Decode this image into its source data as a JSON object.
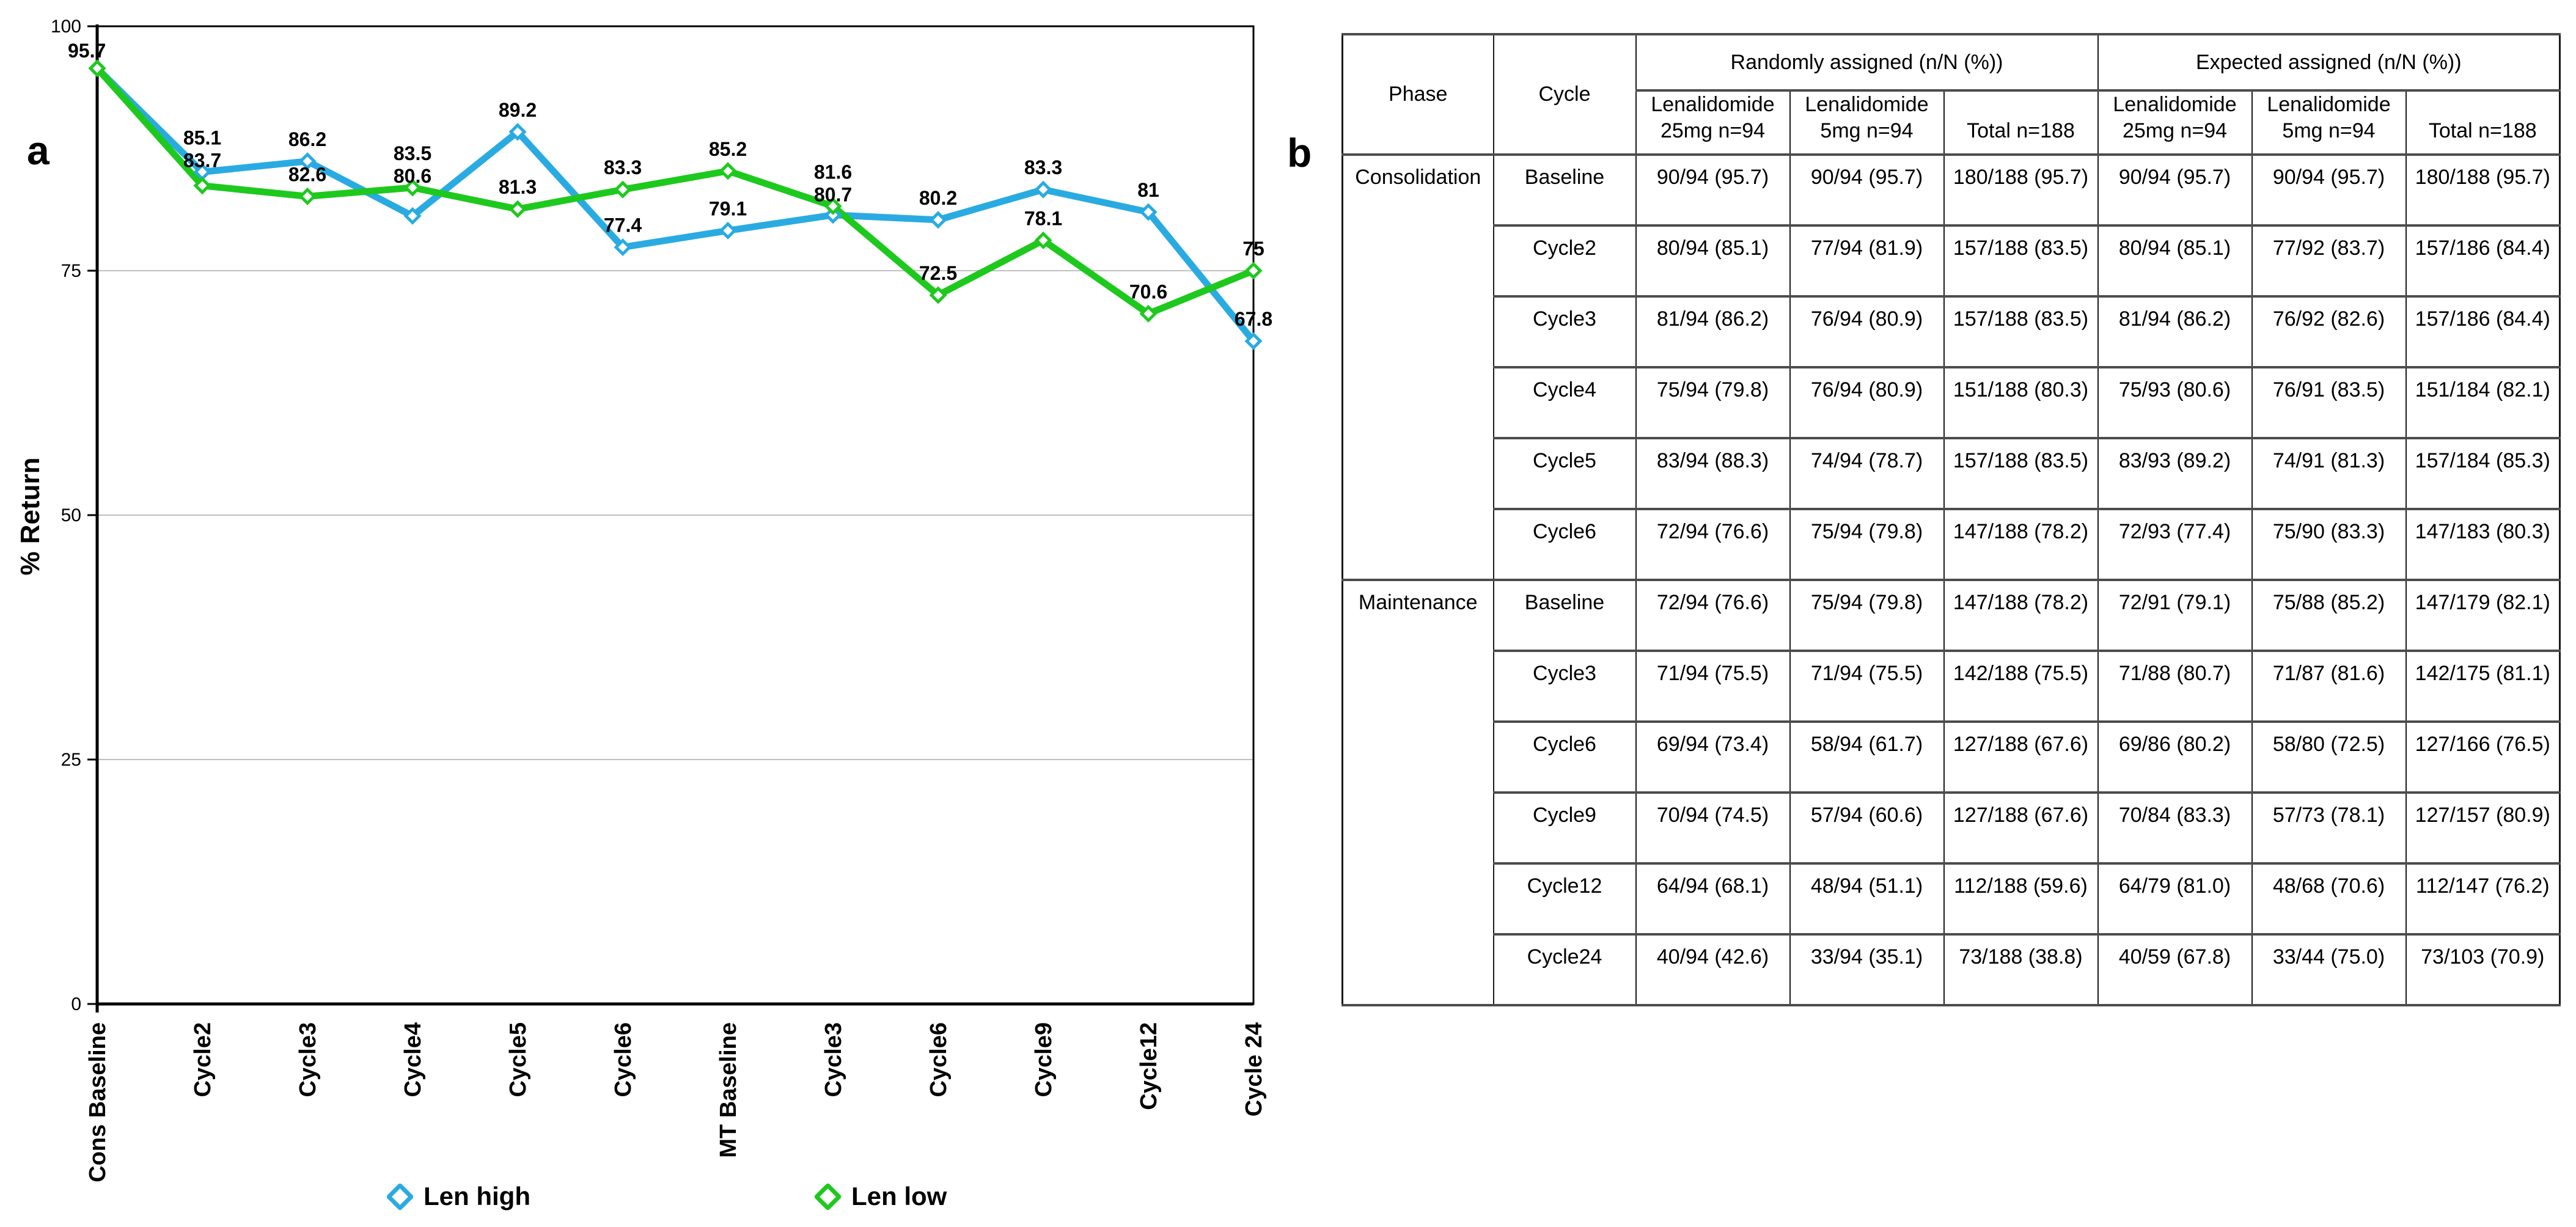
{
  "panel_a": {
    "label": "a",
    "y_axis_title": "% Return",
    "legend": [
      {
        "name": "Len high",
        "color": "#29ABE2"
      },
      {
        "name": "Len low",
        "color": "#1EC91E"
      }
    ]
  },
  "chart_data": {
    "type": "line",
    "title": "",
    "xlabel": "",
    "ylabel": "% Return",
    "ylim": [
      0,
      100
    ],
    "yticks": [
      0,
      25,
      50,
      75,
      100
    ],
    "gridlines": [
      25,
      50,
      75
    ],
    "grid": true,
    "legend_position": "bottom",
    "categories": [
      "Cons Baseline",
      "Cycle2",
      "Cycle3",
      "Cycle4",
      "Cycle5",
      "Cycle6",
      "MT Baseline",
      "Cycle3",
      "Cycle6",
      "Cycle9",
      "Cycle12",
      "Cycle 24"
    ],
    "series": [
      {
        "name": "Len high",
        "color": "#29ABE2",
        "values": [
          95.7,
          85.1,
          86.2,
          80.6,
          89.2,
          77.4,
          79.1,
          80.7,
          80.2,
          83.3,
          81,
          67.8
        ],
        "labels": [
          "95.7",
          "85.1",
          "86.2",
          "80.6",
          "89.2",
          "77.4",
          "79.1",
          "80.7",
          "80.2",
          "83.3",
          "81",
          "67.8"
        ]
      },
      {
        "name": "Len low",
        "color": "#1EC91E",
        "values": [
          95.7,
          83.7,
          82.6,
          83.5,
          81.3,
          83.3,
          85.2,
          81.6,
          72.5,
          78.1,
          70.6,
          75
        ],
        "labels": [
          "95.7",
          "83.7",
          "82.6",
          "83.5",
          "81.3",
          "83.3",
          "85.2",
          "81.6",
          "72.5",
          "78.1",
          "70.6",
          "75"
        ]
      }
    ]
  },
  "panel_b": {
    "label": "b",
    "table": {
      "corner_headers": [
        "Phase",
        "Cycle"
      ],
      "groups": [
        {
          "label": "Randomly assigned (n/N (%))",
          "subcolumns": [
            "Lenalidomide\n25mg n=94",
            "Lenalidomide\n5mg n=94",
            "Total n=188"
          ]
        },
        {
          "label": "Expected assigned (n/N (%))",
          "subcolumns": [
            "Lenalidomide\n25mg n=94",
            "Lenalidomide\n5mg n=94",
            "Total n=188"
          ]
        }
      ],
      "rows": [
        {
          "phase": "Consolidation",
          "phase_rowspan": 6,
          "cycle": "Baseline",
          "values": [
            "90/94 (95.7)",
            "90/94 (95.7)",
            "180/188 (95.7)",
            "90/94 (95.7)",
            "90/94 (95.7)",
            "180/188 (95.7)"
          ]
        },
        {
          "cycle": "Cycle2",
          "values": [
            "80/94 (85.1)",
            "77/94 (81.9)",
            "157/188 (83.5)",
            "80/94 (85.1)",
            "77/92 (83.7)",
            "157/186 (84.4)"
          ]
        },
        {
          "cycle": "Cycle3",
          "values": [
            "81/94 (86.2)",
            "76/94 (80.9)",
            "157/188 (83.5)",
            "81/94 (86.2)",
            "76/92 (82.6)",
            "157/186 (84.4)"
          ]
        },
        {
          "cycle": "Cycle4",
          "values": [
            "75/94 (79.8)",
            "76/94 (80.9)",
            "151/188 (80.3)",
            "75/93 (80.6)",
            "76/91 (83.5)",
            "151/184 (82.1)"
          ]
        },
        {
          "cycle": "Cycle5",
          "values": [
            "83/94 (88.3)",
            "74/94 (78.7)",
            "157/188 (83.5)",
            "83/93 (89.2)",
            "74/91 (81.3)",
            "157/184 (85.3)"
          ]
        },
        {
          "cycle": "Cycle6",
          "values": [
            "72/94 (76.6)",
            "75/94 (79.8)",
            "147/188 (78.2)",
            "72/93 (77.4)",
            "75/90 (83.3)",
            "147/183 (80.3)"
          ]
        },
        {
          "phase": "Maintenance",
          "phase_rowspan": 6,
          "cycle": "Baseline",
          "values": [
            "72/94 (76.6)",
            "75/94 (79.8)",
            "147/188 (78.2)",
            "72/91 (79.1)",
            "75/88 (85.2)",
            "147/179 (82.1)"
          ]
        },
        {
          "cycle": "Cycle3",
          "values": [
            "71/94 (75.5)",
            "71/94 (75.5)",
            "142/188 (75.5)",
            "71/88 (80.7)",
            "71/87 (81.6)",
            "142/175 (81.1)"
          ]
        },
        {
          "cycle": "Cycle6",
          "values": [
            "69/94 (73.4)",
            "58/94 (61.7)",
            "127/188 (67.6)",
            "69/86 (80.2)",
            "58/80 (72.5)",
            "127/166 (76.5)"
          ]
        },
        {
          "cycle": "Cycle9",
          "values": [
            "70/94 (74.5)",
            "57/94 (60.6)",
            "127/188 (67.6)",
            "70/84 (83.3)",
            "57/73 (78.1)",
            "127/157 (80.9)"
          ]
        },
        {
          "cycle": "Cycle12",
          "values": [
            "64/94 (68.1)",
            "48/94 (51.1)",
            "112/188 (59.6)",
            "64/79 (81.0)",
            "48/68 (70.6)",
            "112/147 (76.2)"
          ]
        },
        {
          "cycle": "Cycle24",
          "values": [
            "40/94 (42.6)",
            "33/94 (35.1)",
            "73/188 (38.8)",
            "40/59 (67.8)",
            "33/44 (75.0)",
            "73/103 (70.9)"
          ]
        }
      ]
    }
  }
}
